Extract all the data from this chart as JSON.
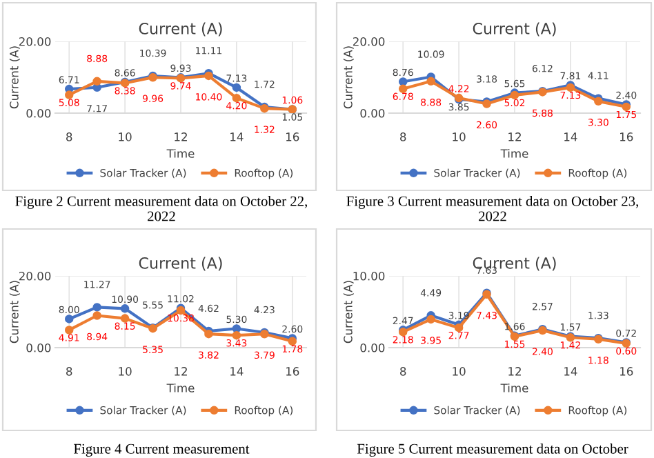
{
  "chart_data": [
    {
      "type": "line",
      "title": "Current (A)",
      "xlabel": "Time",
      "ylabel": "Current (A)",
      "x": [
        8,
        9,
        10,
        11,
        12,
        13,
        14,
        15,
        16
      ],
      "xlim": [
        7.5,
        16.5
      ],
      "xticks": [
        8,
        10,
        12,
        14,
        16
      ],
      "ylim": [
        0,
        20
      ],
      "yticks": [
        {
          "value": 0,
          "label": "0.00"
        },
        {
          "value": 20,
          "label": "20.00"
        }
      ],
      "grid": true,
      "legend": "bottom",
      "marker": "circle",
      "series": [
        {
          "name": "Solar Tracker (A)",
          "color": "#4472c4",
          "values": [
            6.71,
            7.17,
            8.66,
            10.39,
            9.93,
            11.11,
            7.13,
            1.72,
            1.05
          ],
          "value_labels": [
            "6.71",
            "7.17",
            "8.66",
            "10.39",
            "9.93",
            "11.11",
            "7.13",
            "1.72",
            "1.05"
          ]
        },
        {
          "name": "Rooftop (A)",
          "color": "#ed7d31",
          "values": [
            5.08,
            8.88,
            8.38,
            9.96,
            9.74,
            10.4,
            4.2,
            1.32,
            1.06
          ],
          "value_labels": [
            "5.08",
            "8.88",
            "8.38",
            "9.96",
            "9.74",
            "10.40",
            "4.20",
            "1.32",
            "1.06"
          ]
        }
      ],
      "annotations": [
        "Figure 2 Current measurement data on October 22, 2022"
      ]
    },
    {
      "type": "line",
      "title": "Current (A)",
      "xlabel": "Time",
      "ylabel": "Current (A)",
      "x": [
        8,
        9,
        10,
        11,
        12,
        13,
        14,
        15,
        16
      ],
      "xlim": [
        7.5,
        16.5
      ],
      "xticks": [
        8,
        10,
        12,
        14,
        16
      ],
      "ylim": [
        0,
        20
      ],
      "yticks": [
        {
          "value": 0,
          "label": "0.00"
        },
        {
          "value": 20,
          "label": "20.00"
        }
      ],
      "grid": true,
      "legend": "bottom",
      "marker": "circle",
      "series": [
        {
          "name": "Solar Tracker (A)",
          "color": "#4472c4",
          "values": [
            8.76,
            10.09,
            3.85,
            3.18,
            5.65,
            6.12,
            7.81,
            4.11,
            2.4
          ],
          "value_labels": [
            "8.76",
            "10.09",
            "3.85",
            "3.18",
            "5.65",
            "6.12",
            "7.81",
            "4.11",
            "2.40"
          ]
        },
        {
          "name": "Rooftop (A)",
          "color": "#ed7d31",
          "values": [
            6.78,
            8.88,
            4.22,
            2.6,
            5.02,
            5.88,
            7.13,
            3.3,
            1.75
          ],
          "value_labels": [
            "6.78",
            "8.88",
            "4.22",
            "2.60",
            "5.02",
            "5.88",
            "7.13",
            "3.30",
            "1.75"
          ]
        }
      ],
      "annotations": [
        "Figure 3 Current measurement data on October 23, 2022"
      ]
    },
    {
      "type": "line",
      "title": "Current (A)",
      "xlabel": "Time",
      "ylabel": "Current (A)",
      "x": [
        8,
        9,
        10,
        11,
        12,
        13,
        14,
        15,
        16
      ],
      "xlim": [
        7.5,
        16.5
      ],
      "xticks": [
        8,
        10,
        12,
        14,
        16
      ],
      "ylim": [
        0,
        20
      ],
      "yticks": [
        {
          "value": 0,
          "label": "0.00"
        },
        {
          "value": 20,
          "label": "20.00"
        }
      ],
      "grid": true,
      "legend": "bottom",
      "marker": "circle",
      "series": [
        {
          "name": "Solar Tracker (A)",
          "color": "#4472c4",
          "values": [
            8.0,
            11.27,
            10.9,
            5.55,
            11.02,
            4.62,
            5.3,
            4.23,
            2.6
          ],
          "value_labels": [
            "8.00",
            "11.27",
            "10.90",
            "5.55",
            "11.02",
            "4.62",
            "5.30",
            "4.23",
            "2.60"
          ]
        },
        {
          "name": "Rooftop (A)",
          "color": "#ed7d31",
          "values": [
            4.91,
            8.94,
            8.15,
            5.35,
            10.38,
            3.82,
            3.43,
            3.79,
            1.78
          ],
          "value_labels": [
            "4.91",
            "8.94",
            "8.15",
            "5.35",
            "10.38",
            "3.82",
            "3.43",
            "3.79",
            "1.78"
          ]
        }
      ],
      "annotations": [
        "Figure 4 Current measurement"
      ]
    },
    {
      "type": "line",
      "title": "Current (A)",
      "xlabel": "Time",
      "ylabel": "Current (A)",
      "x": [
        8,
        9,
        10,
        11,
        12,
        13,
        14,
        15,
        16
      ],
      "xlim": [
        7.5,
        16.5
      ],
      "xticks": [
        8,
        10,
        12,
        14,
        16
      ],
      "ylim": [
        0,
        10
      ],
      "yticks": [
        {
          "value": 0,
          "label": "0.00"
        },
        {
          "value": 10,
          "label": "10.00"
        }
      ],
      "grid": true,
      "legend": "bottom",
      "marker": "circle",
      "series": [
        {
          "name": "Solar Tracker (A)",
          "color": "#4472c4",
          "values": [
            2.47,
            4.49,
            3.19,
            7.63,
            1.66,
            2.57,
            1.57,
            1.33,
            0.72
          ],
          "value_labels": [
            "2.47",
            "4.49",
            "3.19",
            "7.63",
            "1.66",
            "2.57",
            "1.57",
            "1.33",
            "0.72"
          ]
        },
        {
          "name": "Rooftop (A)",
          "color": "#ed7d31",
          "values": [
            2.18,
            3.95,
            2.77,
            7.43,
            1.55,
            2.4,
            1.42,
            1.18,
            0.6
          ],
          "value_labels": [
            "2.18",
            "3.95",
            "2.77",
            "7.43",
            "1.55",
            "2.40",
            "1.42",
            "1.18",
            "0.60"
          ]
        }
      ],
      "annotations": [
        "Figure 5 Current measurement data on October"
      ]
    }
  ]
}
